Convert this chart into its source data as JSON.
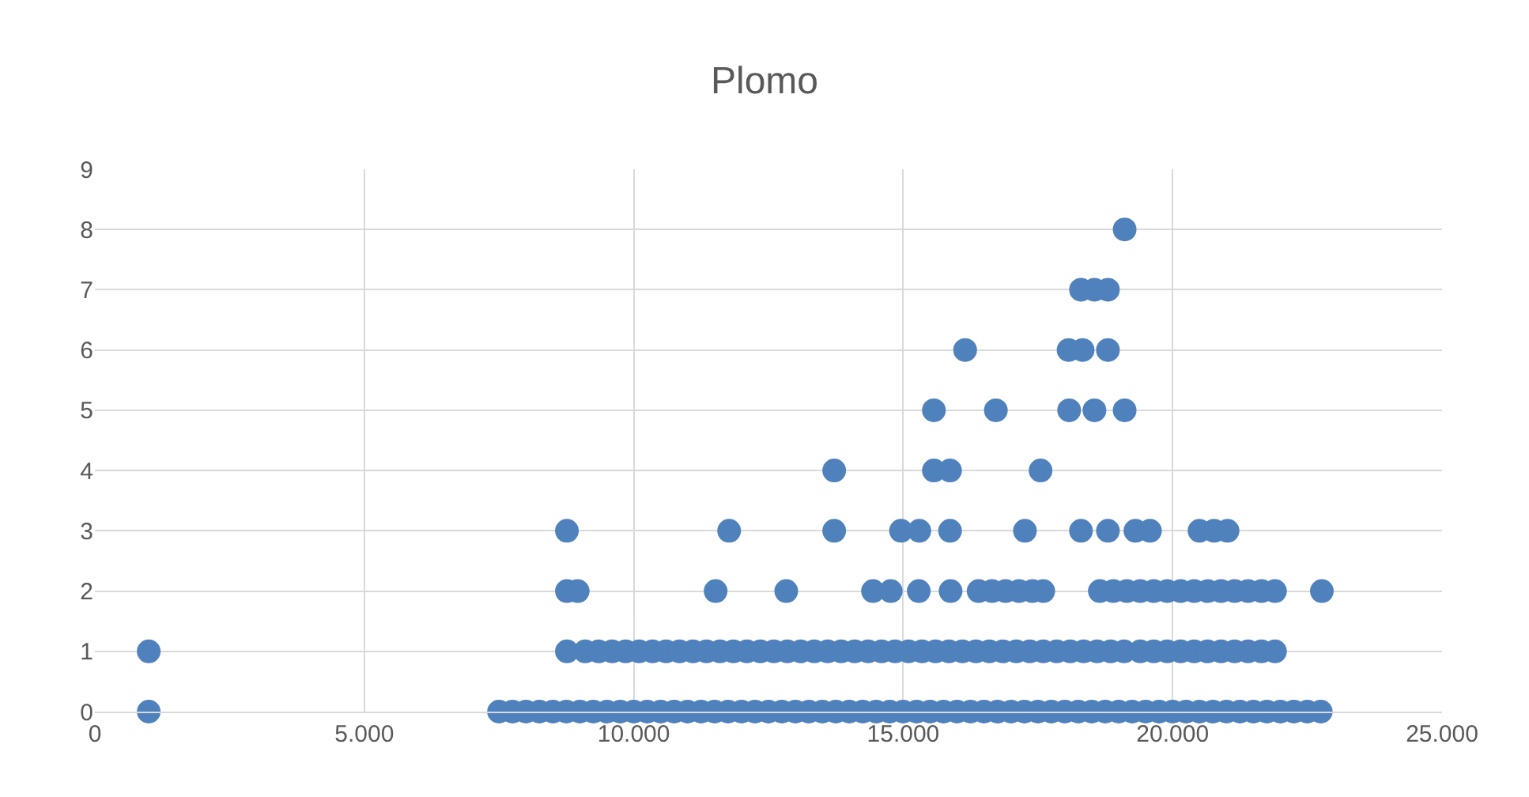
{
  "chart_data": {
    "type": "scatter",
    "title": "Plomo",
    "color": "#4f81bd",
    "marker": "circle",
    "grid": true,
    "xlim": [
      0,
      25000
    ],
    "xticks": [
      0,
      {
        "value": 5000,
        "label": "5.000"
      },
      {
        "value": 10000,
        "label": "10.000"
      },
      {
        "value": 15000,
        "label": "15.000"
      },
      {
        "value": 20000,
        "label": "20.000"
      },
      {
        "value": 25000,
        "label": "25.000"
      }
    ],
    "ylim": [
      0,
      9
    ],
    "yticks": [
      0,
      1,
      2,
      3,
      4,
      5,
      6,
      7,
      8,
      9
    ],
    "x": [
      1000,
      7500,
      7750,
      8000,
      8250,
      8500,
      8750,
      9000,
      9250,
      9500,
      9750,
      10000,
      10250,
      10500,
      10750,
      11000,
      11250,
      11500,
      11750,
      12000,
      12250,
      12500,
      12750,
      13000,
      13250,
      13500,
      13750,
      14000,
      14250,
      14500,
      14750,
      15000,
      15250,
      15500,
      15750,
      16000,
      16250,
      16500,
      16750,
      17000,
      17250,
      17500,
      17750,
      18000,
      18250,
      18500,
      18750,
      19000,
      19250,
      19500,
      19750,
      20000,
      20250,
      20500,
      20750,
      21000,
      21250,
      21500,
      21750,
      22000,
      22250,
      22500,
      22750,
      1000,
      8760,
      9100,
      9350,
      9600,
      9850,
      10100,
      10350,
      10600,
      10850,
      11100,
      11350,
      11600,
      11850,
      12100,
      12350,
      12600,
      12850,
      13100,
      13350,
      13600,
      13850,
      14100,
      14350,
      14600,
      14850,
      15100,
      15350,
      15600,
      15850,
      16100,
      16350,
      16600,
      16850,
      17100,
      17350,
      17600,
      17850,
      18100,
      18350,
      18600,
      18850,
      19100,
      19400,
      19650,
      19900,
      20150,
      20400,
      20650,
      20900,
      21150,
      21400,
      21650,
      21900,
      8760,
      8960,
      11520,
      12830,
      14440,
      14770,
      15290,
      15880,
      16400,
      16650,
      16900,
      17150,
      17400,
      17600,
      18650,
      18900,
      19150,
      19400,
      19650,
      19900,
      20150,
      20400,
      20650,
      20900,
      21150,
      21400,
      21650,
      21900,
      22770,
      8760,
      11770,
      13720,
      14960,
      15300,
      15870,
      17260,
      18300,
      18800,
      19310,
      19580,
      20500,
      20770,
      21020,
      13720,
      15570,
      15870,
      17550,
      15570,
      16720,
      18080,
      18550,
      19110,
      16150,
      18070,
      18330,
      18800,
      18300,
      18550,
      18800,
      19110
    ],
    "values": [
      0,
      0,
      0,
      0,
      0,
      0,
      0,
      0,
      0,
      0,
      0,
      0,
      0,
      0,
      0,
      0,
      0,
      0,
      0,
      0,
      0,
      0,
      0,
      0,
      0,
      0,
      0,
      0,
      0,
      0,
      0,
      0,
      0,
      0,
      0,
      0,
      0,
      0,
      0,
      0,
      0,
      0,
      0,
      0,
      0,
      0,
      0,
      0,
      0,
      0,
      0,
      0,
      0,
      0,
      0,
      0,
      0,
      0,
      0,
      0,
      0,
      0,
      0,
      1,
      1,
      1,
      1,
      1,
      1,
      1,
      1,
      1,
      1,
      1,
      1,
      1,
      1,
      1,
      1,
      1,
      1,
      1,
      1,
      1,
      1,
      1,
      1,
      1,
      1,
      1,
      1,
      1,
      1,
      1,
      1,
      1,
      1,
      1,
      1,
      1,
      1,
      1,
      1,
      1,
      1,
      1,
      1,
      1,
      1,
      1,
      1,
      1,
      1,
      1,
      1,
      1,
      1,
      2,
      2,
      2,
      2,
      2,
      2,
      2,
      2,
      2,
      2,
      2,
      2,
      2,
      2,
      2,
      2,
      2,
      2,
      2,
      2,
      2,
      2,
      2,
      2,
      2,
      2,
      2,
      2,
      2,
      3,
      3,
      3,
      3,
      3,
      3,
      3,
      3,
      3,
      3,
      3,
      3,
      3,
      3,
      4,
      4,
      4,
      4,
      5,
      5,
      5,
      5,
      5,
      6,
      6,
      6,
      6,
      7,
      7,
      7,
      8
    ]
  }
}
